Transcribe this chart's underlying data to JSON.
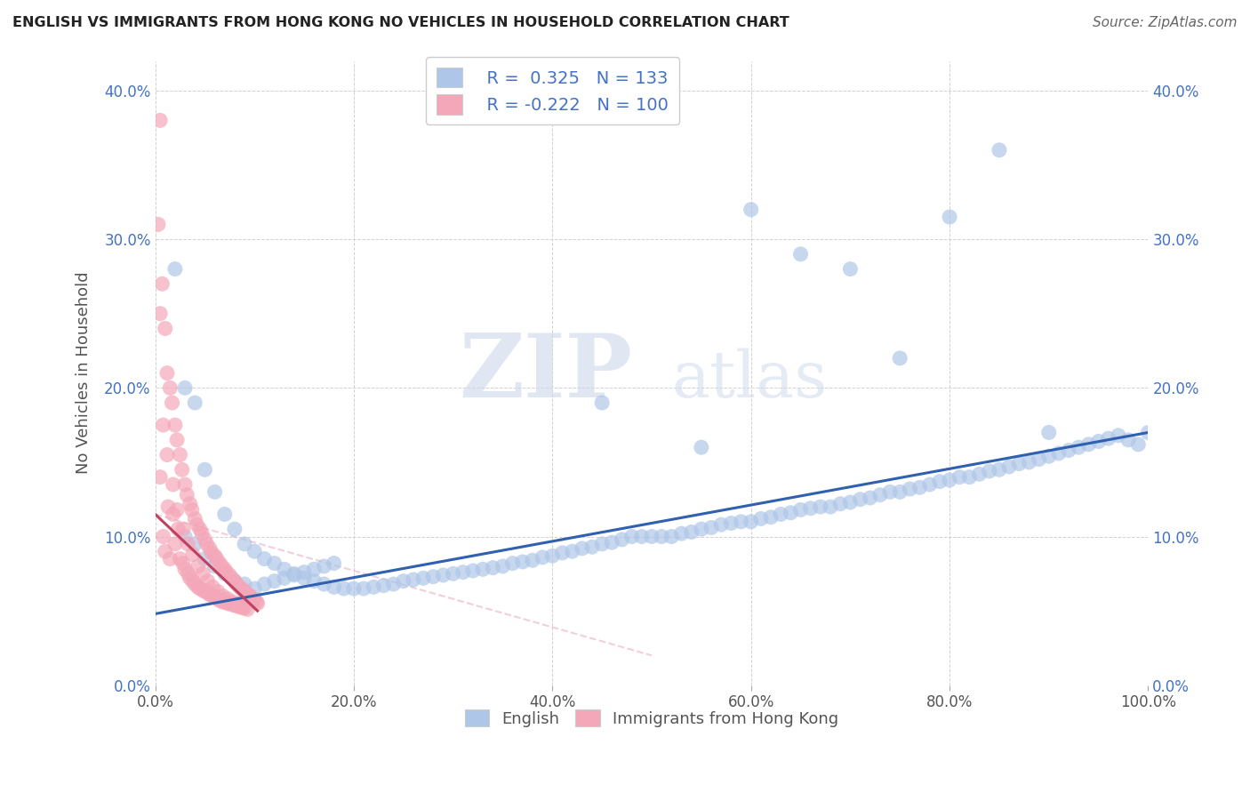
{
  "title": "ENGLISH VS IMMIGRANTS FROM HONG KONG NO VEHICLES IN HOUSEHOLD CORRELATION CHART",
  "source": "Source: ZipAtlas.com",
  "ylabel": "No Vehicles in Household",
  "xlim": [
    0,
    1.0
  ],
  "ylim": [
    0.0,
    0.42
  ],
  "yticks": [
    0.0,
    0.1,
    0.2,
    0.3,
    0.4
  ],
  "xticks": [
    0.0,
    0.2,
    0.4,
    0.6,
    0.8,
    1.0
  ],
  "blue_R": 0.325,
  "blue_N": 133,
  "pink_R": -0.222,
  "pink_N": 100,
  "blue_color": "#aec6e8",
  "pink_color": "#f4a7b9",
  "blue_line_color": "#3060b0",
  "pink_line_color": "#c04060",
  "pink_line_dash_color": "#e8a0b0",
  "watermark": "ZIPatlas",
  "blue_scatter_x": [
    0.02,
    0.03,
    0.04,
    0.05,
    0.06,
    0.07,
    0.08,
    0.09,
    0.1,
    0.11,
    0.12,
    0.13,
    0.14,
    0.15,
    0.16,
    0.17,
    0.18,
    0.19,
    0.2,
    0.21,
    0.22,
    0.23,
    0.24,
    0.25,
    0.26,
    0.27,
    0.28,
    0.29,
    0.3,
    0.31,
    0.32,
    0.33,
    0.34,
    0.35,
    0.36,
    0.37,
    0.38,
    0.39,
    0.4,
    0.41,
    0.42,
    0.43,
    0.44,
    0.45,
    0.46,
    0.47,
    0.48,
    0.49,
    0.5,
    0.51,
    0.52,
    0.53,
    0.54,
    0.55,
    0.56,
    0.57,
    0.58,
    0.59,
    0.6,
    0.61,
    0.62,
    0.63,
    0.64,
    0.65,
    0.66,
    0.67,
    0.68,
    0.69,
    0.7,
    0.71,
    0.72,
    0.73,
    0.74,
    0.75,
    0.76,
    0.77,
    0.78,
    0.79,
    0.8,
    0.81,
    0.82,
    0.83,
    0.84,
    0.85,
    0.86,
    0.87,
    0.88,
    0.89,
    0.9,
    0.91,
    0.92,
    0.93,
    0.94,
    0.95,
    0.96,
    0.97,
    0.98,
    0.99,
    1.0,
    0.03,
    0.04,
    0.05,
    0.06,
    0.07,
    0.08,
    0.09,
    0.1,
    0.11,
    0.12,
    0.13,
    0.14,
    0.15,
    0.16,
    0.17,
    0.18,
    0.45,
    0.55,
    0.6,
    0.65,
    0.7,
    0.75,
    0.8,
    0.85,
    0.9
  ],
  "blue_scatter_y": [
    0.28,
    0.2,
    0.19,
    0.145,
    0.13,
    0.115,
    0.105,
    0.095,
    0.09,
    0.085,
    0.082,
    0.078,
    0.075,
    0.072,
    0.07,
    0.068,
    0.066,
    0.065,
    0.065,
    0.065,
    0.066,
    0.067,
    0.068,
    0.07,
    0.071,
    0.072,
    0.073,
    0.074,
    0.075,
    0.076,
    0.077,
    0.078,
    0.079,
    0.08,
    0.082,
    0.083,
    0.084,
    0.086,
    0.087,
    0.089,
    0.09,
    0.092,
    0.093,
    0.095,
    0.096,
    0.098,
    0.1,
    0.1,
    0.1,
    0.1,
    0.1,
    0.102,
    0.103,
    0.105,
    0.106,
    0.108,
    0.109,
    0.11,
    0.11,
    0.112,
    0.113,
    0.115,
    0.116,
    0.118,
    0.119,
    0.12,
    0.12,
    0.122,
    0.123,
    0.125,
    0.126,
    0.128,
    0.13,
    0.13,
    0.132,
    0.133,
    0.135,
    0.137,
    0.138,
    0.14,
    0.14,
    0.142,
    0.144,
    0.145,
    0.147,
    0.149,
    0.15,
    0.152,
    0.154,
    0.156,
    0.158,
    0.16,
    0.162,
    0.164,
    0.166,
    0.168,
    0.165,
    0.162,
    0.17,
    0.1,
    0.095,
    0.085,
    0.08,
    0.075,
    0.07,
    0.068,
    0.065,
    0.068,
    0.07,
    0.072,
    0.074,
    0.076,
    0.078,
    0.08,
    0.082,
    0.19,
    0.16,
    0.32,
    0.29,
    0.28,
    0.22,
    0.315,
    0.36,
    0.17
  ],
  "pink_scatter_x": [
    0.005,
    0.005,
    0.007,
    0.008,
    0.01,
    0.01,
    0.012,
    0.013,
    0.015,
    0.015,
    0.017,
    0.018,
    0.02,
    0.02,
    0.022,
    0.023,
    0.025,
    0.025,
    0.027,
    0.028,
    0.03,
    0.03,
    0.032,
    0.033,
    0.035,
    0.035,
    0.037,
    0.038,
    0.04,
    0.04,
    0.042,
    0.043,
    0.045,
    0.045,
    0.047,
    0.048,
    0.05,
    0.05,
    0.052,
    0.053,
    0.055,
    0.055,
    0.057,
    0.058,
    0.06,
    0.06,
    0.062,
    0.063,
    0.065,
    0.065,
    0.067,
    0.068,
    0.07,
    0.07,
    0.072,
    0.073,
    0.075,
    0.075,
    0.077,
    0.078,
    0.08,
    0.08,
    0.082,
    0.083,
    0.085,
    0.085,
    0.087,
    0.088,
    0.09,
    0.09,
    0.092,
    0.093,
    0.095,
    0.095,
    0.097,
    0.098,
    0.1,
    0.1,
    0.102,
    0.103,
    0.008,
    0.012,
    0.018,
    0.022,
    0.028,
    0.033,
    0.038,
    0.043,
    0.048,
    0.053,
    0.058,
    0.063,
    0.068,
    0.073,
    0.078,
    0.083,
    0.003,
    0.005
  ],
  "pink_scatter_y": [
    0.38,
    0.14,
    0.27,
    0.1,
    0.24,
    0.09,
    0.21,
    0.12,
    0.2,
    0.085,
    0.19,
    0.115,
    0.175,
    0.095,
    0.165,
    0.105,
    0.155,
    0.085,
    0.145,
    0.082,
    0.135,
    0.078,
    0.128,
    0.075,
    0.122,
    0.072,
    0.118,
    0.07,
    0.112,
    0.068,
    0.108,
    0.066,
    0.105,
    0.065,
    0.102,
    0.064,
    0.098,
    0.063,
    0.095,
    0.062,
    0.092,
    0.061,
    0.089,
    0.06,
    0.087,
    0.059,
    0.085,
    0.058,
    0.082,
    0.057,
    0.08,
    0.056,
    0.078,
    0.056,
    0.076,
    0.055,
    0.074,
    0.055,
    0.072,
    0.054,
    0.07,
    0.054,
    0.068,
    0.053,
    0.066,
    0.053,
    0.065,
    0.052,
    0.063,
    0.052,
    0.062,
    0.051,
    0.06,
    0.06,
    0.059,
    0.058,
    0.057,
    0.057,
    0.056,
    0.055,
    0.175,
    0.155,
    0.135,
    0.118,
    0.105,
    0.095,
    0.088,
    0.08,
    0.075,
    0.07,
    0.066,
    0.063,
    0.06,
    0.058,
    0.056,
    0.055,
    0.31,
    0.25
  ],
  "blue_trend_x": [
    0.0,
    1.0
  ],
  "blue_trend_y": [
    0.048,
    0.17
  ],
  "pink_trend_x": [
    0.0,
    0.103
  ],
  "pink_trend_y": [
    0.115,
    0.05
  ],
  "pink_dash_trend_x": [
    0.0,
    0.5
  ],
  "pink_dash_trend_y": [
    0.115,
    0.02
  ]
}
